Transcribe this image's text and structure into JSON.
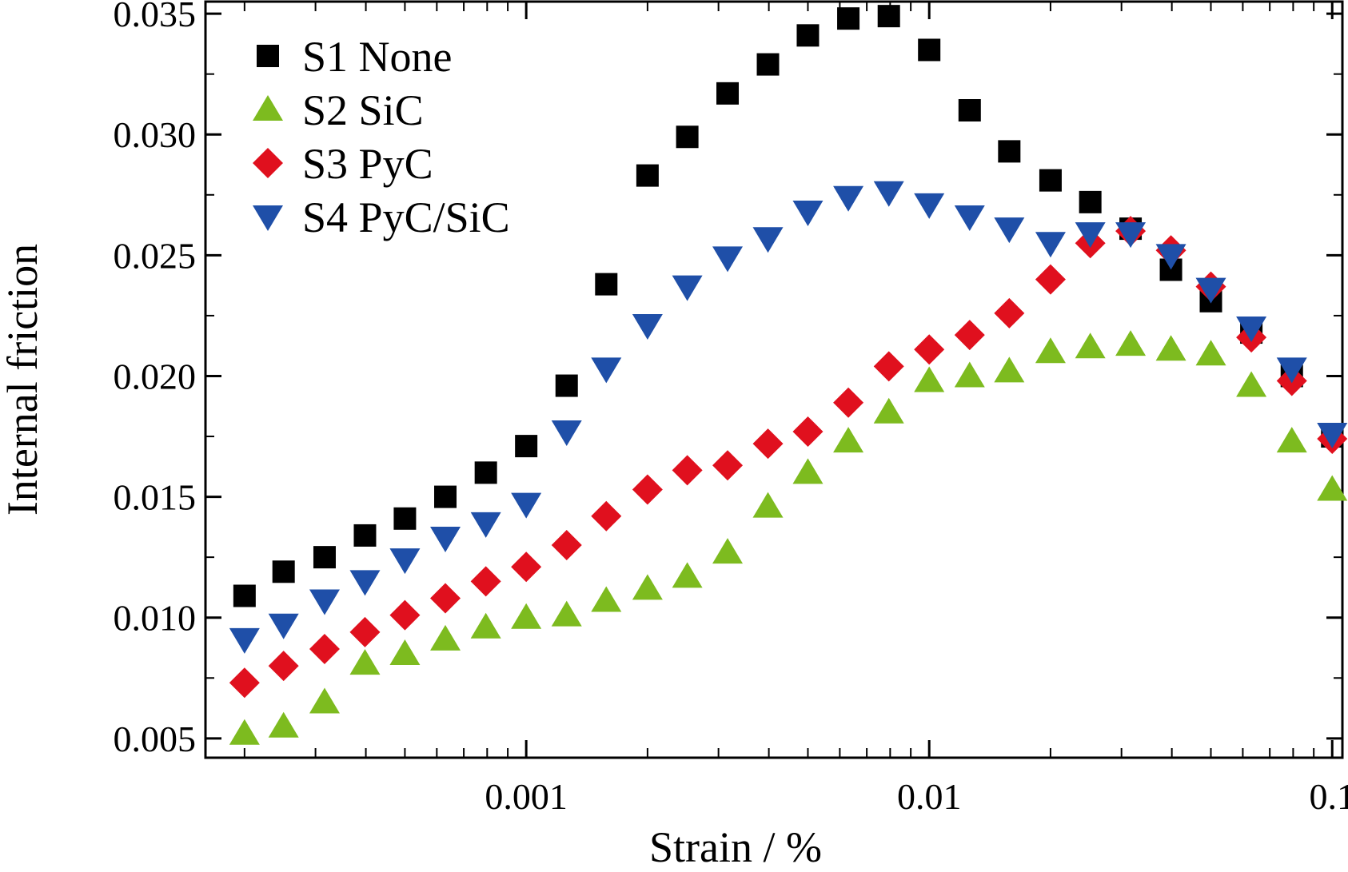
{
  "chart_data": {
    "type": "scatter",
    "title": "",
    "xlabel": "Strain / %",
    "ylabel": "Internal friction",
    "xscale": "log",
    "xlim": [
      0.00016,
      0.106
    ],
    "ylim": [
      0.0042,
      0.0355
    ],
    "x_ticks": [
      {
        "value": 0.001,
        "label": "0.001"
      },
      {
        "value": 0.01,
        "label": "0.01"
      },
      {
        "value": 0.1,
        "label": "0.1"
      }
    ],
    "y_ticks": [
      {
        "value": 0.005,
        "label": "0.005"
      },
      {
        "value": 0.01,
        "label": "0.010"
      },
      {
        "value": 0.015,
        "label": "0.015"
      },
      {
        "value": 0.02,
        "label": "0.020"
      },
      {
        "value": 0.025,
        "label": "0.025"
      },
      {
        "value": 0.03,
        "label": "0.030"
      },
      {
        "value": 0.035,
        "label": "0.035"
      }
    ],
    "grid": false,
    "legend_position": "top-left",
    "x": [
      0.0002,
      0.00025,
      0.000316,
      0.000398,
      0.0005,
      0.00063,
      0.000794,
      0.001,
      0.00126,
      0.00158,
      0.002,
      0.00251,
      0.00316,
      0.00398,
      0.005,
      0.0063,
      0.00794,
      0.01,
      0.0126,
      0.0158,
      0.02,
      0.0251,
      0.0316,
      0.0398,
      0.05,
      0.063,
      0.0794,
      0.1
    ],
    "series": [
      {
        "name": "S1 None",
        "marker": "square",
        "color": "#000000",
        "values": [
          0.0109,
          0.0119,
          0.0125,
          0.0134,
          0.0141,
          0.015,
          0.016,
          0.0171,
          0.0196,
          0.0238,
          0.0283,
          0.0299,
          0.0317,
          0.0329,
          0.0341,
          0.0348,
          0.0349,
          0.0335,
          0.031,
          0.0293,
          0.0281,
          0.0272,
          0.0261,
          0.0244,
          0.0231,
          0.0218,
          0.02,
          0.0175
        ]
      },
      {
        "name": "S2 SiC",
        "marker": "triangle-up",
        "color": "#7dbb1f",
        "values": [
          0.0052,
          0.0055,
          0.0065,
          0.0081,
          0.0085,
          0.0091,
          0.0096,
          0.01,
          0.0101,
          0.0107,
          0.0112,
          0.0117,
          0.0127,
          0.0146,
          0.016,
          0.0173,
          0.0185,
          0.0198,
          0.02,
          0.0202,
          0.021,
          0.0212,
          0.0213,
          0.0211,
          0.0209,
          0.0196,
          0.0173,
          0.0153
        ]
      },
      {
        "name": "S3 PyC",
        "marker": "diamond",
        "color": "#e0101e",
        "values": [
          0.0073,
          0.008,
          0.0087,
          0.0094,
          0.0101,
          0.0108,
          0.0115,
          0.0121,
          0.013,
          0.0142,
          0.0153,
          0.0161,
          0.0163,
          0.0172,
          0.0177,
          0.0189,
          0.0204,
          0.0211,
          0.0217,
          0.0226,
          0.024,
          0.0255,
          0.026,
          0.0252,
          0.0237,
          0.0216,
          0.0198,
          0.0174
        ]
      },
      {
        "name": "S4 PyC/SiC",
        "marker": "triangle-down",
        "color": "#1f4fa8",
        "values": [
          0.0091,
          0.0097,
          0.0107,
          0.0115,
          0.0124,
          0.0133,
          0.0139,
          0.0147,
          0.0177,
          0.0203,
          0.0221,
          0.0237,
          0.0249,
          0.0257,
          0.0268,
          0.0274,
          0.0276,
          0.0271,
          0.0266,
          0.0261,
          0.0255,
          0.0259,
          0.0259,
          0.025,
          0.0236,
          0.022,
          0.0203,
          0.0176
        ]
      }
    ]
  }
}
